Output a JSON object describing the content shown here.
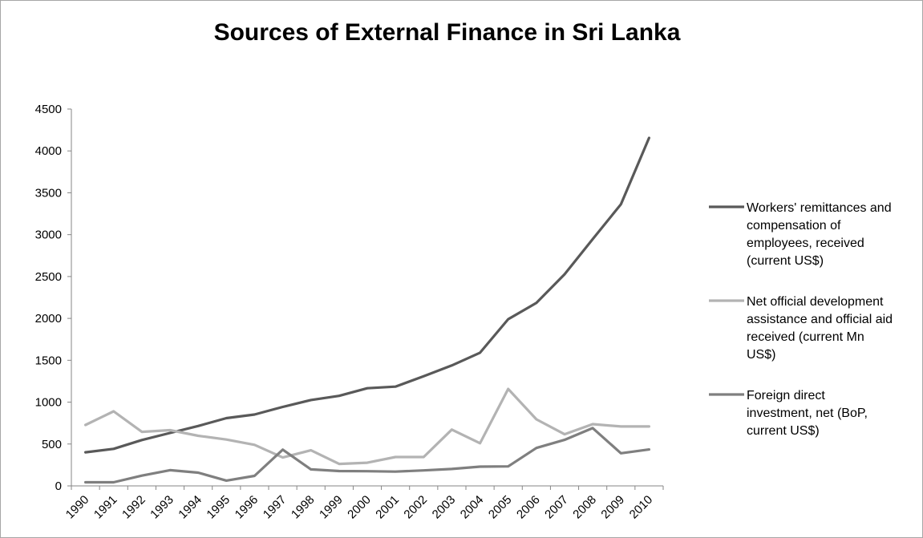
{
  "chart_data": {
    "type": "line",
    "title": "Sources of External Finance in Sri Lanka",
    "xlabel": "",
    "ylabel": "",
    "x": [
      "1990",
      "1991",
      "1992",
      "1993",
      "1994",
      "1995",
      "1996",
      "1997",
      "1998",
      "1999",
      "2000",
      "2001",
      "2002",
      "2003",
      "2004",
      "2005",
      "2006",
      "2007",
      "2008",
      "2009",
      "2010"
    ],
    "ylim": [
      0,
      4500
    ],
    "yticks": [
      0,
      500,
      1000,
      1500,
      2000,
      2500,
      3000,
      3500,
      4000,
      4500
    ],
    "grid": false,
    "legend_position": "right",
    "series": [
      {
        "name": "Workers' remittances and compensation of employees, received (current US$)",
        "legend_lines": [
          "Workers' remittances and",
          "compensation of",
          "employees, received",
          "(current US$)"
        ],
        "color": "#595959",
        "values": [
          401,
          442,
          548,
          632,
          715,
          809,
          852,
          943,
          1025,
          1075,
          1166,
          1185,
          1309,
          1438,
          1590,
          1991,
          2185,
          2527,
          2947,
          3363,
          4155
        ]
      },
      {
        "name": "Net official development assistance and official aid received (current Mn US$)",
        "legend_lines": [
          "Net official development",
          "assistance and official aid",
          "received (current Mn",
          "US$)"
        ],
        "color": "#b3b3b3",
        "values": [
          728,
          890,
          645,
          665,
          598,
          553,
          490,
          339,
          425,
          262,
          277,
          345,
          345,
          672,
          509,
          1158,
          795,
          617,
          737,
          709,
          709
        ]
      },
      {
        "name": "Foreign direct investment, net (BoP, current US$)",
        "legend_lines": [
          "Foreign direct",
          "investment, net (BoP,",
          "current US$)"
        ],
        "color": "#7f7f7f",
        "values": [
          43,
          43,
          123,
          188,
          158,
          63,
          120,
          433,
          197,
          177,
          175,
          170,
          185,
          202,
          230,
          233,
          453,
          550,
          690,
          390,
          435
        ]
      }
    ]
  }
}
